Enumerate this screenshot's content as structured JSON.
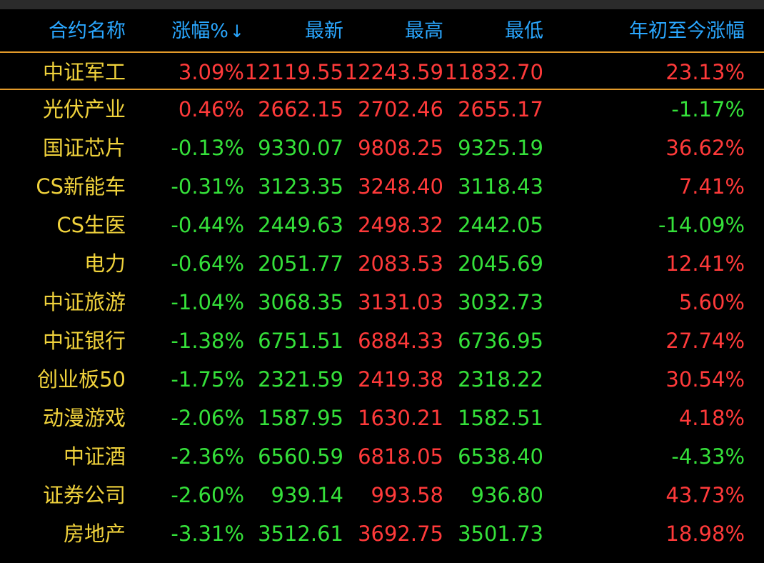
{
  "headers": {
    "name": "合约名称",
    "change": "涨幅%",
    "sort_indicator": "↓",
    "last": "最新",
    "high": "最高",
    "low": "最低",
    "ytd": "年初至今涨幅"
  },
  "colors": {
    "header": "#2aa7ff",
    "name": "#f0d23c",
    "up": "#ff3a3a",
    "down": "#35e13a",
    "selection_border": "#e39a2a",
    "background": "#000000"
  },
  "rows": [
    {
      "name": "中证军工",
      "change": "3.09%",
      "last": "12119.55",
      "high": "12243.59",
      "low": "11832.70",
      "ytd": "23.13%",
      "change_dir": "up",
      "last_dir": "up",
      "high_dir": "up",
      "low_dir": "up",
      "ytd_dir": "up",
      "selected": true
    },
    {
      "name": "光伏产业",
      "change": "0.46%",
      "last": "2662.15",
      "high": "2702.46",
      "low": "2655.17",
      "ytd": "-1.17%",
      "change_dir": "up",
      "last_dir": "up",
      "high_dir": "up",
      "low_dir": "up",
      "ytd_dir": "down"
    },
    {
      "name": "国证芯片",
      "change": "-0.13%",
      "last": "9330.07",
      "high": "9808.25",
      "low": "9325.19",
      "ytd": "36.62%",
      "change_dir": "down",
      "last_dir": "down",
      "high_dir": "up",
      "low_dir": "down",
      "ytd_dir": "up"
    },
    {
      "name": "CS新能车",
      "change": "-0.31%",
      "last": "3123.35",
      "high": "3248.40",
      "low": "3118.43",
      "ytd": "7.41%",
      "change_dir": "down",
      "last_dir": "down",
      "high_dir": "up",
      "low_dir": "down",
      "ytd_dir": "up"
    },
    {
      "name": "CS生医",
      "change": "-0.44%",
      "last": "2449.63",
      "high": "2498.32",
      "low": "2442.05",
      "ytd": "-14.09%",
      "change_dir": "down",
      "last_dir": "down",
      "high_dir": "up",
      "low_dir": "down",
      "ytd_dir": "down"
    },
    {
      "name": "电力",
      "change": "-0.64%",
      "last": "2051.77",
      "high": "2083.53",
      "low": "2045.69",
      "ytd": "12.41%",
      "change_dir": "down",
      "last_dir": "down",
      "high_dir": "up",
      "low_dir": "down",
      "ytd_dir": "up"
    },
    {
      "name": "中证旅游",
      "change": "-1.04%",
      "last": "3068.35",
      "high": "3131.03",
      "low": "3032.73",
      "ytd": "5.60%",
      "change_dir": "down",
      "last_dir": "down",
      "high_dir": "up",
      "low_dir": "down",
      "ytd_dir": "up"
    },
    {
      "name": "中证银行",
      "change": "-1.38%",
      "last": "6751.51",
      "high": "6884.33",
      "low": "6736.95",
      "ytd": "27.74%",
      "change_dir": "down",
      "last_dir": "down",
      "high_dir": "up",
      "low_dir": "down",
      "ytd_dir": "up"
    },
    {
      "name": "创业板50",
      "change": "-1.75%",
      "last": "2321.59",
      "high": "2419.38",
      "low": "2318.22",
      "ytd": "30.54%",
      "change_dir": "down",
      "last_dir": "down",
      "high_dir": "up",
      "low_dir": "down",
      "ytd_dir": "up"
    },
    {
      "name": "动漫游戏",
      "change": "-2.06%",
      "last": "1587.95",
      "high": "1630.21",
      "low": "1582.51",
      "ytd": "4.18%",
      "change_dir": "down",
      "last_dir": "down",
      "high_dir": "up",
      "low_dir": "down",
      "ytd_dir": "up"
    },
    {
      "name": "中证酒",
      "change": "-2.36%",
      "last": "6560.59",
      "high": "6818.05",
      "low": "6538.40",
      "ytd": "-4.33%",
      "change_dir": "down",
      "last_dir": "down",
      "high_dir": "up",
      "low_dir": "down",
      "ytd_dir": "down"
    },
    {
      "name": "证券公司",
      "change": "-2.60%",
      "last": "939.14",
      "high": "993.58",
      "low": "936.80",
      "ytd": "43.73%",
      "change_dir": "down",
      "last_dir": "down",
      "high_dir": "up",
      "low_dir": "down",
      "ytd_dir": "up"
    },
    {
      "name": "房地产",
      "change": "-3.31%",
      "last": "3512.61",
      "high": "3692.75",
      "low": "3501.73",
      "ytd": "18.98%",
      "change_dir": "down",
      "last_dir": "down",
      "high_dir": "up",
      "low_dir": "down",
      "ytd_dir": "up"
    }
  ]
}
